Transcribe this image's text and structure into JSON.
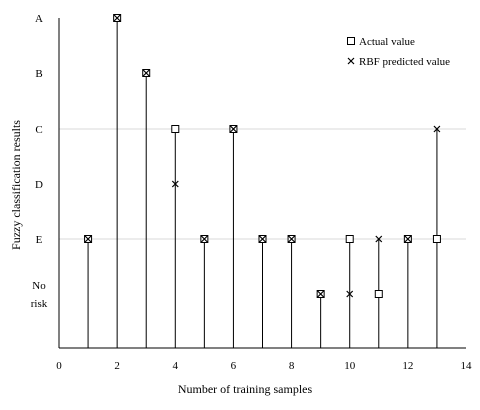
{
  "chart_data": {
    "type": "scatter",
    "title": "",
    "xlabel": "Number of training samples",
    "ylabel": "Fuzzy classification results",
    "xlim": [
      0,
      14
    ],
    "x_ticks": [
      "0",
      "2",
      "4",
      "6",
      "8",
      "10",
      "12",
      "14"
    ],
    "y_categories": [
      "No risk",
      "E",
      "D",
      "C",
      "B",
      "A"
    ],
    "y_category_lines": [
      [
        "No",
        "risk"
      ],
      [
        "E"
      ],
      [
        "D"
      ],
      [
        "C"
      ],
      [
        "B"
      ],
      [
        "A"
      ]
    ],
    "gridlines_y": [
      "E",
      "C"
    ],
    "legend_position": "top-right",
    "x": [
      1,
      2,
      3,
      4,
      5,
      6,
      7,
      8,
      9,
      10,
      11,
      12,
      13
    ],
    "series": [
      {
        "name": "Actual value",
        "marker": "open-square",
        "values": [
          "E",
          "A",
          "B",
          "C",
          "E",
          "C",
          "E",
          "E",
          "No risk",
          "E",
          "No risk",
          "E",
          "E"
        ]
      },
      {
        "name": "RBF predicted value",
        "marker": "cross",
        "values": [
          "E",
          "A",
          "B",
          "D",
          "E",
          "C",
          "E",
          "E",
          "No risk",
          "No risk",
          "E",
          "E",
          "C"
        ]
      }
    ]
  }
}
